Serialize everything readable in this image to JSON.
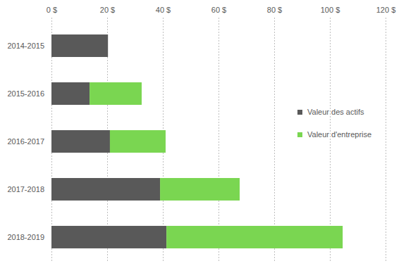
{
  "chart_data": {
    "type": "bar",
    "orientation": "horizontal",
    "stacked": true,
    "grid": true,
    "legend": "right",
    "categories": [
      "2014-2015",
      "2015-2016",
      "2016-2017",
      "2017-2018",
      "2018-2019"
    ],
    "series": [
      {
        "name": "Valeur des actifs",
        "color": "#595959",
        "values": [
          20.3,
          13.7,
          21,
          39,
          41.3
        ]
      },
      {
        "name": "Valeur d'entreprise",
        "color": "#7ad651",
        "values": [
          null,
          18.7,
          20,
          28.6,
          63.3
        ]
      }
    ],
    "xlim": [
      0,
      120
    ],
    "xticks": [
      {
        "value": 0,
        "label": "0 $"
      },
      {
        "value": 20,
        "label": "20 $"
      },
      {
        "value": 40,
        "label": "40 $"
      },
      {
        "value": 60,
        "label": "60 $"
      },
      {
        "value": 80,
        "label": "80 $"
      },
      {
        "value": 100,
        "label": "100 $"
      },
      {
        "value": 120,
        "label": "120 $"
      }
    ]
  }
}
